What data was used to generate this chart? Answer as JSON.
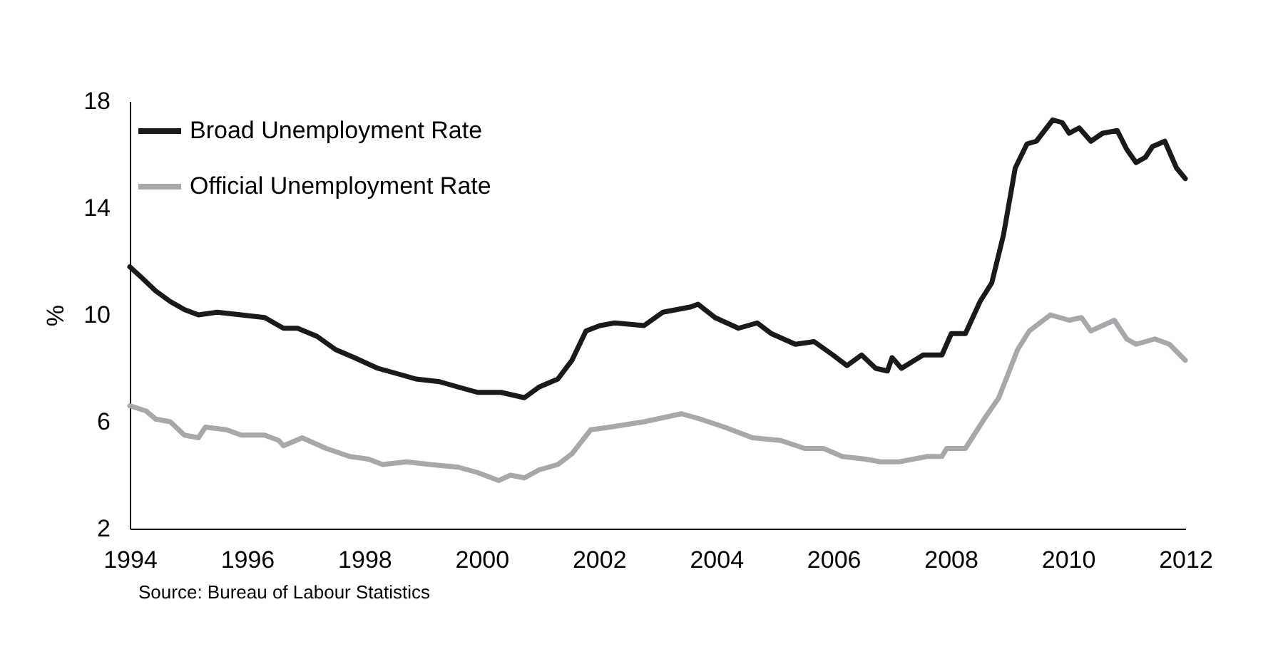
{
  "chart_data": {
    "type": "line",
    "ylabel": "%",
    "xlim": [
      1994,
      2012
    ],
    "xticks": [
      1994,
      1996,
      1998,
      2000,
      2002,
      2004,
      2006,
      2008,
      2010,
      2012
    ],
    "ylim": [
      2,
      18
    ],
    "yticks": [
      2,
      6,
      10,
      14,
      18
    ],
    "grid": false,
    "legend": "top left",
    "marker": "none",
    "line_style": "solid",
    "annotations": [
      "Source: Bureau of Labour Statistics"
    ],
    "series": [
      {
        "name": "Broad Unemployment Rate",
        "color": "#1a1a1a",
        "x": [
          1994.0,
          1994.2,
          1994.44,
          1994.69,
          1994.93,
          1995.17,
          1995.49,
          1995.9,
          1996.3,
          1996.62,
          1996.86,
          1997.19,
          1997.51,
          1997.83,
          1998.23,
          1998.56,
          1998.88,
          1999.28,
          1999.6,
          1999.93,
          2000.33,
          2000.73,
          2000.98,
          2001.3,
          2001.54,
          2001.78,
          2002.02,
          2002.27,
          2002.77,
          2003.09,
          2003.57,
          2003.69,
          2003.98,
          2004.38,
          2004.7,
          2004.94,
          2005.35,
          2005.67,
          2005.99,
          2006.23,
          2006.48,
          2006.72,
          2006.92,
          2007.0,
          2007.16,
          2007.53,
          2007.85,
          2008.01,
          2008.25,
          2008.5,
          2008.7,
          2008.9,
          2009.1,
          2009.3,
          2009.46,
          2009.74,
          2009.9,
          2010.02,
          2010.19,
          2010.39,
          2010.59,
          2010.84,
          2011.0,
          2011.16,
          2011.32,
          2011.44,
          2011.65,
          2011.85,
          2012.0
        ],
        "values": [
          11.8,
          11.4,
          10.9,
          10.5,
          10.2,
          10.0,
          10.1,
          10.0,
          9.9,
          9.5,
          9.5,
          9.2,
          8.7,
          8.4,
          8.0,
          7.8,
          7.6,
          7.5,
          7.3,
          7.1,
          7.1,
          6.9,
          7.3,
          7.6,
          8.3,
          9.4,
          9.6,
          9.7,
          9.6,
          10.1,
          10.3,
          10.4,
          9.9,
          9.5,
          9.7,
          9.3,
          8.9,
          9.0,
          8.5,
          8.1,
          8.5,
          8.0,
          7.9,
          8.4,
          8.0,
          8.5,
          8.5,
          9.3,
          9.3,
          10.5,
          11.2,
          13.0,
          15.5,
          16.4,
          16.5,
          17.3,
          17.2,
          16.8,
          17.0,
          16.5,
          16.8,
          16.9,
          16.2,
          15.7,
          15.9,
          16.3,
          16.5,
          15.5,
          15.1
        ]
      },
      {
        "name": "Official Unemployment Rate",
        "color": "#a6a8ab",
        "x": [
          1994.0,
          1994.28,
          1994.44,
          1994.69,
          1994.93,
          1995.17,
          1995.29,
          1995.65,
          1995.9,
          1996.3,
          1996.54,
          1996.62,
          1996.94,
          1997.35,
          1997.75,
          1998.07,
          1998.31,
          1998.72,
          1999.12,
          1999.6,
          1999.93,
          2000.29,
          2000.49,
          2000.73,
          2000.98,
          2001.3,
          2001.54,
          2001.86,
          2002.19,
          2002.77,
          2003.41,
          2003.73,
          2004.14,
          2004.62,
          2005.1,
          2005.51,
          2005.83,
          2006.15,
          2006.55,
          2006.8,
          2007.12,
          2007.6,
          2007.85,
          2007.93,
          2008.25,
          2008.57,
          2008.82,
          2009.14,
          2009.34,
          2009.7,
          2009.86,
          2010.02,
          2010.23,
          2010.39,
          2010.59,
          2010.79,
          2011.0,
          2011.16,
          2011.48,
          2011.73,
          2012.0
        ],
        "values": [
          6.6,
          6.4,
          6.1,
          6.0,
          5.5,
          5.4,
          5.8,
          5.7,
          5.5,
          5.5,
          5.3,
          5.1,
          5.4,
          5.0,
          4.7,
          4.6,
          4.4,
          4.5,
          4.4,
          4.3,
          4.1,
          3.8,
          4.0,
          3.9,
          4.2,
          4.4,
          4.8,
          5.7,
          5.8,
          6.0,
          6.3,
          6.1,
          5.8,
          5.4,
          5.3,
          5.0,
          5.0,
          4.7,
          4.6,
          4.5,
          4.5,
          4.7,
          4.7,
          5.0,
          5.0,
          6.1,
          6.9,
          8.7,
          9.4,
          10.0,
          9.9,
          9.8,
          9.9,
          9.4,
          9.6,
          9.8,
          9.1,
          8.9,
          9.1,
          8.9,
          8.3
        ]
      }
    ]
  }
}
